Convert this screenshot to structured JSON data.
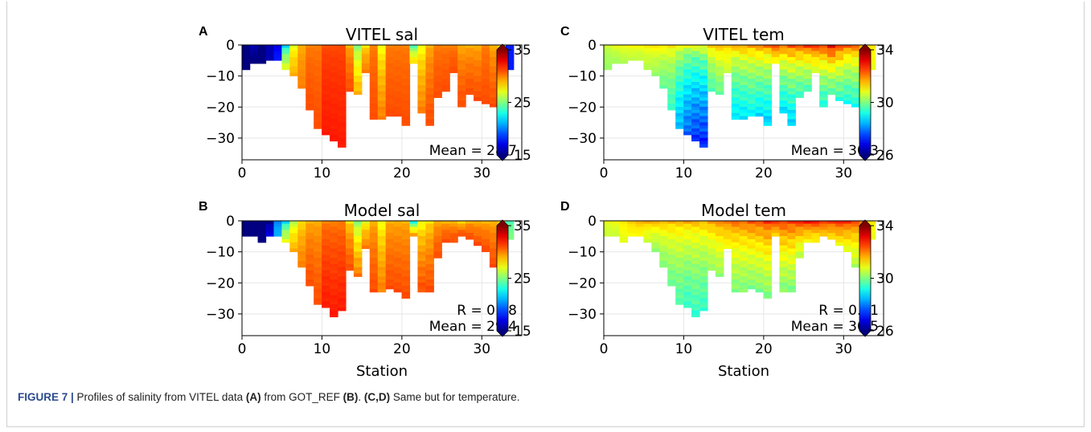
{
  "chart_data": [
    {
      "type": "heatmap",
      "panel_letter": "A",
      "title": "VITEL sal",
      "xlabel": "",
      "ylabel": "",
      "xlim": [
        0,
        35
      ],
      "ylim": [
        -37,
        0
      ],
      "xticks": [
        0,
        10,
        20,
        30
      ],
      "yticks": [
        0,
        -10,
        -20,
        -30
      ],
      "colorbar": {
        "min": 15,
        "max": 35,
        "ticks": [
          35,
          25,
          15
        ],
        "colormap": "jet"
      },
      "stations": [
        0,
        1,
        2,
        3,
        4,
        5,
        6,
        7,
        8,
        9,
        10,
        11,
        12,
        13,
        14,
        15,
        16,
        17,
        18,
        19,
        20,
        21,
        22,
        23,
        24,
        25,
        26,
        27,
        28,
        29,
        30,
        31,
        32,
        33
      ],
      "max_depth": [
        -8,
        -6,
        -6,
        -5,
        -5,
        -8,
        -10,
        -14,
        -21,
        -27,
        -29,
        -31,
        -33,
        -15,
        -16,
        -9,
        -24,
        -24,
        -23,
        -23,
        -26,
        -6,
        -22,
        -26,
        -17,
        -15,
        -9,
        -20,
        -16,
        -18,
        -19,
        -20,
        -21,
        -8
      ],
      "value_surface": [
        15,
        16,
        15,
        16,
        17,
        22,
        27,
        29,
        30,
        30,
        31,
        31,
        31,
        29,
        25,
        28,
        30,
        27,
        30,
        30,
        30,
        24,
        27,
        29,
        30,
        30,
        30,
        29,
        29,
        29,
        30,
        29,
        28,
        18
      ],
      "value_bottom": [
        15,
        15,
        15,
        16,
        18,
        27,
        29,
        30,
        31,
        31,
        32,
        32,
        32,
        31,
        29,
        30,
        31,
        30,
        31,
        31,
        31,
        28,
        30,
        31,
        31,
        31,
        31,
        31,
        31,
        31,
        31,
        31,
        31,
        18
      ],
      "annotations": [
        "Mean = 28.7"
      ]
    },
    {
      "type": "heatmap",
      "panel_letter": "B",
      "title": "Model sal",
      "xlabel": "Station",
      "ylabel": "",
      "xlim": [
        0,
        35
      ],
      "ylim": [
        -37,
        0
      ],
      "xticks": [
        0,
        10,
        20,
        30
      ],
      "yticks": [
        0,
        -10,
        -20,
        -30
      ],
      "colorbar": {
        "min": 15,
        "max": 35,
        "ticks": [
          35,
          25,
          15
        ],
        "colormap": "jet"
      },
      "stations": [
        0,
        1,
        2,
        3,
        4,
        5,
        6,
        7,
        8,
        9,
        10,
        11,
        12,
        13,
        14,
        15,
        16,
        17,
        18,
        19,
        20,
        21,
        22,
        23,
        24,
        25,
        26,
        27,
        28,
        29,
        30,
        31,
        32,
        33
      ],
      "max_depth": [
        -5,
        -5,
        -7,
        -5,
        -5,
        -7,
        -10,
        -15,
        -21,
        -27,
        -28,
        -31,
        -29,
        -16,
        -18,
        -9,
        -23,
        -23,
        -22,
        -23,
        -25,
        -5,
        -23,
        -23,
        -12,
        -7,
        -7,
        -5,
        -6,
        -8,
        -10,
        -15,
        -20,
        -6
      ],
      "value_surface": [
        15,
        15,
        15,
        15,
        20,
        22,
        26,
        28,
        29,
        29,
        30,
        30,
        30,
        28,
        25,
        27,
        29,
        27,
        29,
        29,
        29,
        23,
        27,
        28,
        29,
        29,
        29,
        28,
        29,
        29,
        29,
        29,
        28,
        24
      ],
      "value_bottom": [
        15,
        15,
        15,
        17,
        21,
        27,
        29,
        30,
        31,
        31,
        32,
        32,
        32,
        31,
        30,
        30,
        31,
        30,
        31,
        31,
        31,
        29,
        31,
        31,
        31,
        31,
        31,
        31,
        31,
        31,
        31,
        31,
        31,
        25
      ],
      "annotations": [
        "R = 0.88",
        "Mean = 29.4"
      ]
    },
    {
      "type": "heatmap",
      "panel_letter": "C",
      "title": "VITEL tem",
      "xlabel": "",
      "ylabel": "",
      "xlim": [
        0,
        35
      ],
      "ylim": [
        -37,
        0
      ],
      "xticks": [
        0,
        10,
        20,
        30
      ],
      "yticks": [
        0,
        -10,
        -20,
        -30
      ],
      "colorbar": {
        "min": 26,
        "max": 34,
        "ticks": [
          34,
          30,
          26
        ],
        "colormap": "jet"
      },
      "stations": [
        0,
        1,
        2,
        3,
        4,
        5,
        6,
        7,
        8,
        9,
        10,
        11,
        12,
        13,
        14,
        15,
        16,
        17,
        18,
        19,
        20,
        21,
        22,
        23,
        24,
        25,
        26,
        27,
        28,
        29,
        30,
        31,
        32,
        33
      ],
      "max_depth": [
        -8,
        -6,
        -6,
        -5,
        -5,
        -8,
        -10,
        -14,
        -21,
        -27,
        -29,
        -31,
        -33,
        -15,
        -16,
        -9,
        -24,
        -24,
        -23,
        -23,
        -26,
        -6,
        -22,
        -26,
        -17,
        -15,
        -9,
        -20,
        -16,
        -18,
        -19,
        -20,
        -21,
        -8
      ],
      "value_surface": [
        30.6,
        30.8,
        30.9,
        31.0,
        31.0,
        31.1,
        31.2,
        31.2,
        31.2,
        31.0,
        30.8,
        30.8,
        31.0,
        31.4,
        31.6,
        31.4,
        31.6,
        31.8,
        31.8,
        32.0,
        32.0,
        32.4,
        32.2,
        32.4,
        32.4,
        32.5,
        32.6,
        32.6,
        33.2,
        32.6,
        32.2,
        32.2,
        31.8,
        31.2
      ],
      "value_bottom": [
        30.2,
        30.3,
        30.4,
        30.5,
        30.5,
        30.4,
        30.2,
        29.8,
        29.4,
        28.4,
        27.8,
        27.4,
        27.2,
        29.6,
        29.8,
        30.6,
        28.8,
        28.8,
        29.0,
        28.8,
        28.6,
        31.0,
        28.8,
        28.6,
        29.4,
        29.6,
        30.6,
        29.2,
        29.6,
        29.4,
        29.2,
        29.2,
        29.0,
        30.8
      ],
      "annotations": [
        "Mean = 30.3"
      ]
    },
    {
      "type": "heatmap",
      "panel_letter": "D",
      "title": "Model tem",
      "xlabel": "Station",
      "ylabel": "",
      "xlim": [
        0,
        35
      ],
      "ylim": [
        -37,
        0
      ],
      "xticks": [
        0,
        10,
        20,
        30
      ],
      "yticks": [
        0,
        -10,
        -20,
        -30
      ],
      "colorbar": {
        "min": 26,
        "max": 34,
        "ticks": [
          34,
          30,
          26
        ],
        "colormap": "jet"
      },
      "stations": [
        0,
        1,
        2,
        3,
        4,
        5,
        6,
        7,
        8,
        9,
        10,
        11,
        12,
        13,
        14,
        15,
        16,
        17,
        18,
        19,
        20,
        21,
        22,
        23,
        24,
        25,
        26,
        27,
        28,
        29,
        30,
        31,
        32,
        33
      ],
      "max_depth": [
        -5,
        -5,
        -7,
        -5,
        -5,
        -7,
        -10,
        -15,
        -21,
        -27,
        -28,
        -31,
        -29,
        -16,
        -18,
        -9,
        -23,
        -23,
        -22,
        -23,
        -25,
        -5,
        -23,
        -23,
        -12,
        -7,
        -7,
        -5,
        -6,
        -8,
        -10,
        -15,
        -20,
        -6
      ],
      "value_surface": [
        30.8,
        30.9,
        31.2,
        31.4,
        31.6,
        31.6,
        31.6,
        31.6,
        31.6,
        31.6,
        31.6,
        31.6,
        31.6,
        31.8,
        32.0,
        32.0,
        32.2,
        32.2,
        32.4,
        32.4,
        32.6,
        32.6,
        32.6,
        32.6,
        32.8,
        32.8,
        32.8,
        32.6,
        32.6,
        32.8,
        32.6,
        32.4,
        32.2,
        31.2
      ],
      "value_bottom": [
        30.6,
        30.6,
        30.8,
        31.0,
        31.0,
        30.6,
        30.2,
        30.0,
        29.8,
        29.6,
        29.4,
        29.4,
        29.4,
        30.2,
        30.2,
        31.0,
        30.0,
        30.0,
        30.0,
        30.0,
        30.0,
        31.4,
        30.0,
        30.0,
        30.4,
        31.0,
        31.0,
        31.4,
        31.2,
        31.0,
        30.8,
        30.4,
        30.2,
        30.8
      ],
      "annotations": [
        "R = 0.71",
        "Mean = 30.5"
      ]
    }
  ],
  "caption": {
    "figure_label": "FIGURE 7 |",
    "text_1": " Profiles of salinity from VITEL data ",
    "ref_a": "(A)",
    "text_2": " from GOT_REF ",
    "ref_b": "(B)",
    "text_3": ". ",
    "ref_cd": "(C,D)",
    "text_4": " Same but for temperature."
  }
}
